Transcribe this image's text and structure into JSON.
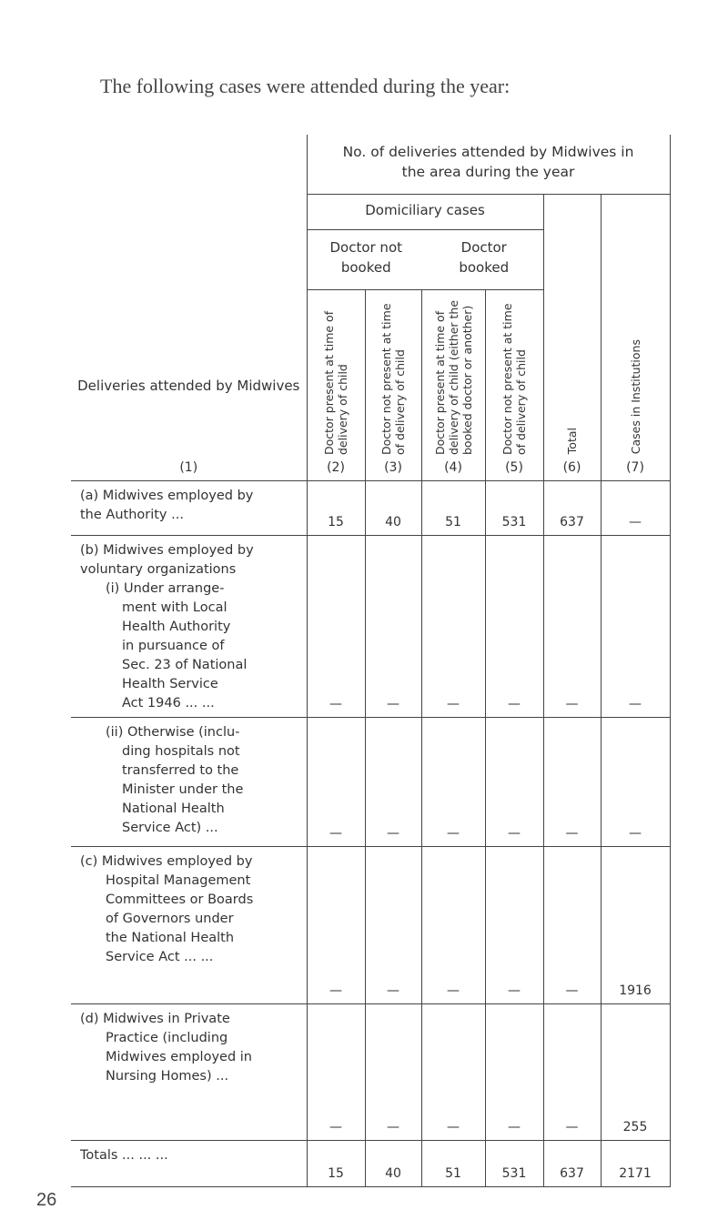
{
  "caption": "The following cases were attended during the year:",
  "page_number": "26",
  "header": {
    "row_label": "Deliveries attended by Midwives",
    "row_label_num": "(1)",
    "top": "No. of deliveries attended by Midwives in the area during the year",
    "domiciliary": "Domiciliary cases",
    "not_booked": "Doctor not booked",
    "booked": "Doctor booked",
    "cols": [
      {
        "text": "Doctor present at time of delivery of child",
        "num": "(2)"
      },
      {
        "text": "Doctor not present at time of delivery of child",
        "num": "(3)"
      },
      {
        "text": "Doctor present at time of delivery of child (either the booked doctor or another)",
        "num": "(4)"
      },
      {
        "text": "Doctor not present at time of delivery of child",
        "num": "(5)"
      },
      {
        "text": "Total",
        "num": "(6)"
      },
      {
        "text": "Cases in Institutions",
        "num": "(7)"
      }
    ]
  },
  "rows": [
    {
      "label": [
        "(a) Midwives employed by",
        "the Authority ..."
      ],
      "values": [
        "15",
        "40",
        "51",
        "531",
        "637",
        "—"
      ]
    },
    {
      "label": [
        "(b) Midwives employed by",
        "voluntary organizations",
        "(i) Under arrange-",
        "ment with Local",
        "Health Authority",
        "in pursuance of",
        "Sec. 23 of National",
        "Health Service",
        "Act 1946 ... ..."
      ],
      "values": [
        "—",
        "—",
        "—",
        "—",
        "—",
        "—"
      ]
    },
    {
      "label": [
        "(ii) Otherwise (inclu-",
        "ding hospitals not",
        "transferred to the",
        "Minister under the",
        "National Health",
        "Service Act) ..."
      ],
      "values": [
        "—",
        "—",
        "—",
        "—",
        "—",
        "—"
      ]
    },
    {
      "label": [
        "(c) Midwives employed by",
        "Hospital Management",
        "Committees or Boards",
        "of Governors under",
        "the National Health",
        "Service Act ... ..."
      ],
      "values": [
        "—",
        "—",
        "—",
        "—",
        "—",
        "1916"
      ]
    },
    {
      "label": [
        "(d) Midwives in Private",
        "Practice (including",
        "Midwives employed in",
        "Nursing Homes) ..."
      ],
      "values": [
        "—",
        "—",
        "—",
        "—",
        "—",
        "255"
      ]
    },
    {
      "label": [
        "Totals ... ... ..."
      ],
      "values": [
        "15",
        "40",
        "51",
        "531",
        "637",
        "2171"
      ]
    }
  ]
}
